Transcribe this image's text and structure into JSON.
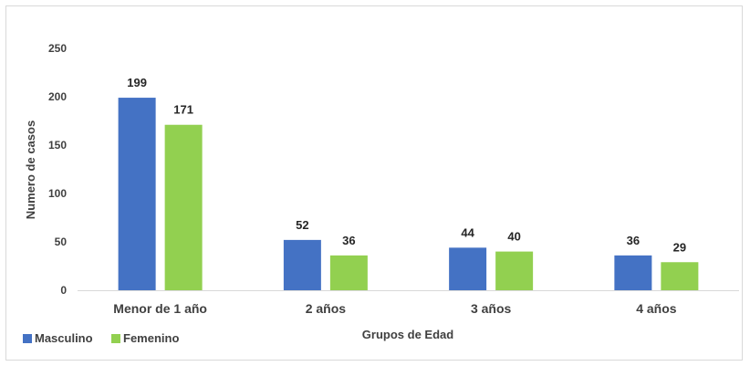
{
  "chart_data": {
    "type": "bar",
    "title": "",
    "xlabel": "Grupos de Edad",
    "ylabel": "Numero de casos",
    "categories": [
      "Menor de 1 año",
      "2 años",
      "3 años",
      "4 años"
    ],
    "series": [
      {
        "name": "Masculino",
        "values": [
          199,
          52,
          44,
          36
        ],
        "color": "#4472c4"
      },
      {
        "name": "Femenino",
        "values": [
          171,
          36,
          40,
          29
        ],
        "color": "#92d050"
      }
    ],
    "ylim": [
      0,
      250
    ],
    "yticks": [
      0,
      50,
      100,
      150,
      200,
      250
    ],
    "grid": false,
    "legend": "bottom-left"
  }
}
